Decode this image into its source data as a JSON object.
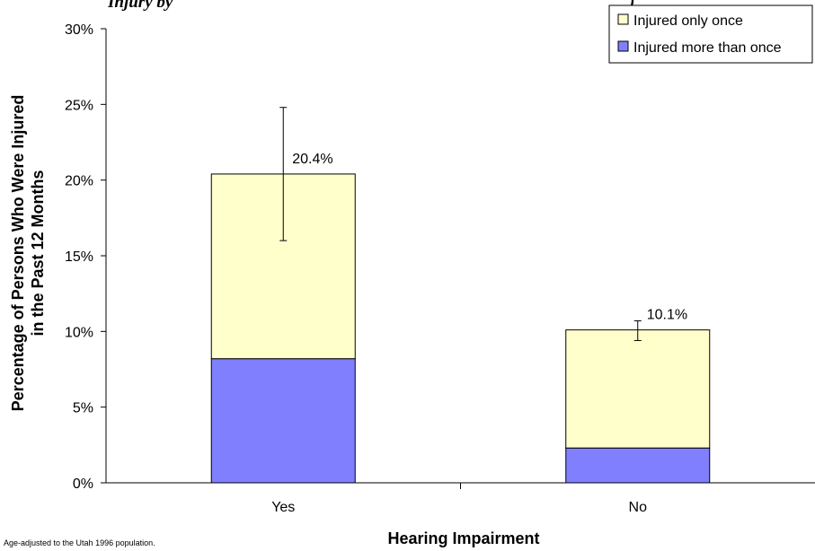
{
  "chart_data": {
    "type": "bar",
    "stacked": true,
    "title_fragment": "Injury by",
    "title_end_fragment": ")",
    "xlabel": "Hearing Impairment",
    "ylabel_lines": [
      "Percentage of Persons Who Were Injured",
      "in the Past 12 Months"
    ],
    "categories": [
      "Yes",
      "No"
    ],
    "series": [
      {
        "name": "Injured more than once",
        "color": "#8080ff",
        "values": [
          8.2,
          2.3
        ]
      },
      {
        "name": "Injured only once",
        "color": "#ffffcc",
        "values": [
          12.2,
          7.8
        ]
      }
    ],
    "totals": [
      20.4,
      10.1
    ],
    "total_labels": [
      "20.4%",
      "10.1%"
    ],
    "error_bars": [
      {
        "low": 16.0,
        "high": 24.8
      },
      {
        "low": 9.4,
        "high": 10.7
      }
    ],
    "ylim": [
      0,
      30
    ],
    "yticks": [
      0,
      5,
      10,
      15,
      20,
      25,
      30
    ],
    "ytick_labels": [
      "0%",
      "5%",
      "10%",
      "15%",
      "20%",
      "25%",
      "30%"
    ],
    "legend": {
      "position": "top-right",
      "entries": [
        "Injured only once",
        "Injured more than once"
      ]
    },
    "footnote": "Age-adjusted to the Utah 1996 population."
  }
}
